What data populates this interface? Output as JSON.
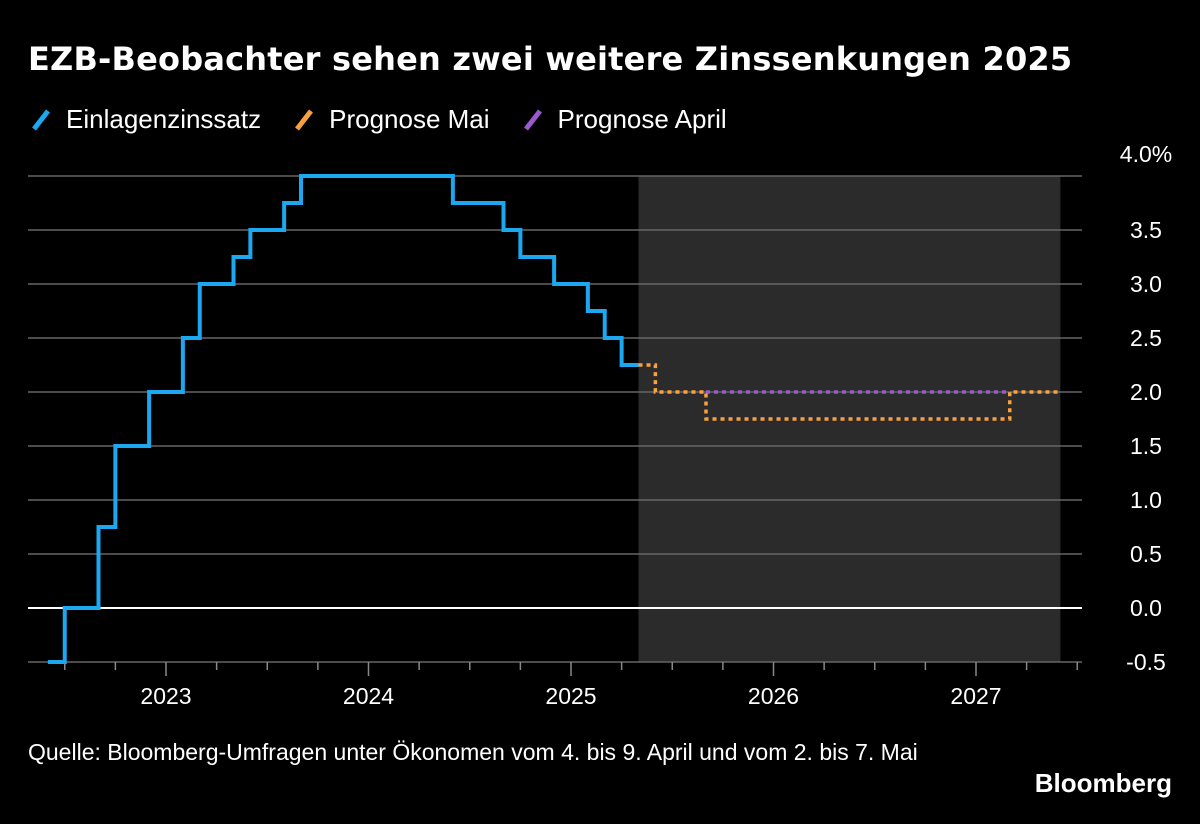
{
  "chart_data": {
    "type": "line",
    "title": "EZB-Beobachter sehen zwei weitere Zinssenkungen 2025",
    "legend": [
      {
        "name": "Einlagenzinssatz",
        "color": "#1ba8f0"
      },
      {
        "name": "Prognose Mai",
        "color": "#f9a03f"
      },
      {
        "name": "Prognose April",
        "color": "#9b59d0"
      }
    ],
    "x_ticks": [
      "2023",
      "2024",
      "2025",
      "2026",
      "2027"
    ],
    "y_ticks": [
      "4.0%",
      "3.5",
      "3.0",
      "2.5",
      "2.0",
      "1.5",
      "1.0",
      "0.5",
      "0.0",
      "-0.5"
    ],
    "ylim": [
      -0.5,
      4.0
    ],
    "y_axis_position": "right",
    "grid": true,
    "forecast_shading": {
      "from": "2025-05",
      "to": "2027-06",
      "color": "#2b2b2b"
    },
    "series": [
      {
        "name": "Einlagenzinssatz",
        "color": "#1ba8f0",
        "style": "solid",
        "points": [
          [
            "2022-06",
            -0.5
          ],
          [
            "2022-07",
            0.0
          ],
          [
            "2022-09",
            0.75
          ],
          [
            "2022-10",
            1.5
          ],
          [
            "2022-12",
            2.0
          ],
          [
            "2023-02",
            2.5
          ],
          [
            "2023-03",
            3.0
          ],
          [
            "2023-05",
            3.25
          ],
          [
            "2023-06",
            3.5
          ],
          [
            "2023-08",
            3.75
          ],
          [
            "2023-09",
            4.0
          ],
          [
            "2024-06",
            3.75
          ],
          [
            "2024-09",
            3.5
          ],
          [
            "2024-10",
            3.25
          ],
          [
            "2024-12",
            3.0
          ],
          [
            "2025-02",
            2.75
          ],
          [
            "2025-03",
            2.5
          ],
          [
            "2025-04",
            2.25
          ],
          [
            "2025-05",
            2.25
          ]
        ]
      },
      {
        "name": "Prognose Mai",
        "color": "#f9a03f",
        "style": "dotted",
        "points": [
          [
            "2025-05",
            2.25
          ],
          [
            "2025-06",
            2.0
          ],
          [
            "2025-09",
            1.75
          ],
          [
            "2027-03",
            2.0
          ],
          [
            "2027-06",
            2.0
          ]
        ]
      },
      {
        "name": "Prognose April",
        "color": "#9b59d0",
        "style": "dotted",
        "points": [
          [
            "2025-09",
            2.0
          ],
          [
            "2027-03",
            2.0
          ]
        ]
      }
    ]
  },
  "footer": {
    "source": "Quelle: Bloomberg-Umfragen unter Ökonomen vom 4. bis 9. April und vom 2. bis 7. Mai",
    "brand": "Bloomberg"
  }
}
